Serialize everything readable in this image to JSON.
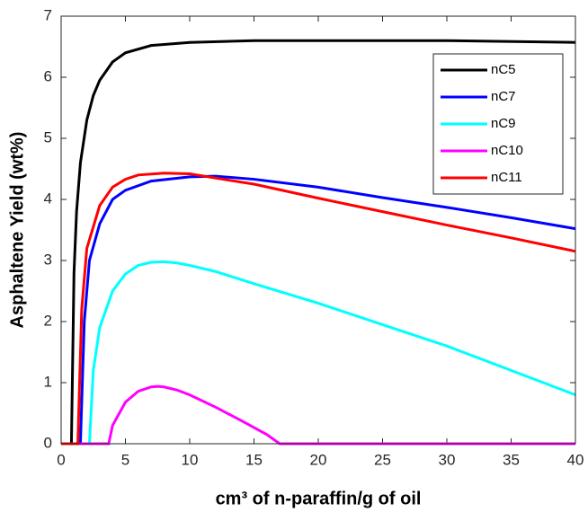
{
  "chart_data": {
    "type": "line",
    "xlabel": "cm³ of n-paraffin/g of oil",
    "ylabel": "Asphaltene Yield (wt%)",
    "xlim": [
      0,
      40
    ],
    "ylim": [
      0,
      7
    ],
    "xticks": [
      0,
      5,
      10,
      15,
      20,
      25,
      30,
      35,
      40
    ],
    "yticks": [
      0,
      1,
      2,
      3,
      4,
      5,
      6,
      7
    ],
    "grid": false,
    "legend": "upper right",
    "series": [
      {
        "name": "nC5",
        "color": "#000000",
        "x": [
          0,
          0.8,
          1,
          1.2,
          1.5,
          2,
          2.5,
          3,
          4,
          5,
          7,
          10,
          15,
          20,
          30,
          40
        ],
        "values": [
          0,
          0,
          2.8,
          3.8,
          4.6,
          5.3,
          5.7,
          5.95,
          6.25,
          6.4,
          6.52,
          6.57,
          6.6,
          6.6,
          6.6,
          6.57
        ]
      },
      {
        "name": "nC7",
        "color": "#0000ff",
        "x": [
          0,
          1.5,
          1.8,
          2.2,
          3,
          4,
          5,
          7,
          10,
          12,
          15,
          20,
          25,
          30,
          35,
          40
        ],
        "values": [
          0,
          0,
          2.0,
          3.0,
          3.6,
          4.0,
          4.15,
          4.3,
          4.37,
          4.38,
          4.33,
          4.2,
          4.03,
          3.87,
          3.7,
          3.52
        ]
      },
      {
        "name": "nC9",
        "color": "#00ffff",
        "x": [
          0,
          2.2,
          2.5,
          3,
          4,
          5,
          6,
          7,
          8,
          9,
          10,
          12,
          15,
          20,
          25,
          30,
          35,
          40
        ],
        "values": [
          0,
          0,
          1.2,
          1.9,
          2.5,
          2.78,
          2.92,
          2.97,
          2.98,
          2.96,
          2.92,
          2.82,
          2.62,
          2.3,
          1.95,
          1.6,
          1.2,
          0.8
        ]
      },
      {
        "name": "nC10",
        "color": "#ff00ff",
        "x": [
          0,
          3.7,
          4,
          5,
          6,
          7,
          7.5,
          8,
          9,
          10,
          12,
          14,
          16,
          17,
          20,
          30,
          40
        ],
        "values": [
          0,
          0,
          0.3,
          0.68,
          0.86,
          0.93,
          0.94,
          0.93,
          0.88,
          0.8,
          0.6,
          0.38,
          0.15,
          0,
          0,
          0,
          0
        ]
      },
      {
        "name": "nC11",
        "color": "#ff0000",
        "x": [
          0,
          1.3,
          1.6,
          2,
          3,
          4,
          5,
          6,
          8,
          10,
          12,
          15,
          20,
          25,
          30,
          35,
          40
        ],
        "values": [
          0,
          0,
          2.2,
          3.2,
          3.9,
          4.2,
          4.33,
          4.4,
          4.43,
          4.42,
          4.35,
          4.25,
          4.02,
          3.8,
          3.58,
          3.37,
          3.15
        ]
      }
    ]
  }
}
